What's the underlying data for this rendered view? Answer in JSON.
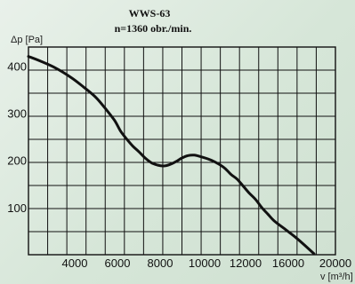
{
  "chart_data": {
    "type": "line",
    "title": "WWS-63",
    "subtitle": "n=1360 obr./min.",
    "xlabel": "v [m³/h]",
    "ylabel": "Δp [Pa]",
    "xlim": [
      0,
      20000
    ],
    "ylim": [
      0,
      440
    ],
    "x_ticks": [
      4000,
      6000,
      8000,
      10000,
      12000,
      16000,
      20000
    ],
    "x_tick_labels": [
      "4000",
      "6000",
      "8000",
      "10000",
      "12000",
      "16000",
      "20000"
    ],
    "y_ticks": [
      100,
      200,
      300,
      400
    ],
    "y_tick_labels": [
      "100",
      "200",
      "300",
      "400"
    ],
    "grid": true,
    "series": [
      {
        "x": [
          0,
          800,
          1800,
          2800,
          3600,
          4400,
          5000,
          5600,
          6000,
          6400,
          6800,
          7200,
          7600,
          8000,
          8400,
          8800,
          9200,
          9600,
          10000,
          10400,
          10800,
          11200,
          11600,
          12000,
          12400,
          12800,
          13200,
          13600,
          14000,
          14400,
          14800,
          15200,
          15600,
          16000,
          16800,
          17400,
          18000,
          18600
        ],
        "y": [
          420,
          410,
          395,
          375,
          355,
          333,
          310,
          285,
          262,
          245,
          230,
          218,
          205,
          195,
          190,
          188,
          191,
          197,
          205,
          210,
          211,
          208,
          204,
          199,
          192,
          183,
          170,
          160,
          145,
          130,
          117,
          100,
          86,
          72,
          52,
          37,
          20,
          2
        ]
      }
    ]
  }
}
